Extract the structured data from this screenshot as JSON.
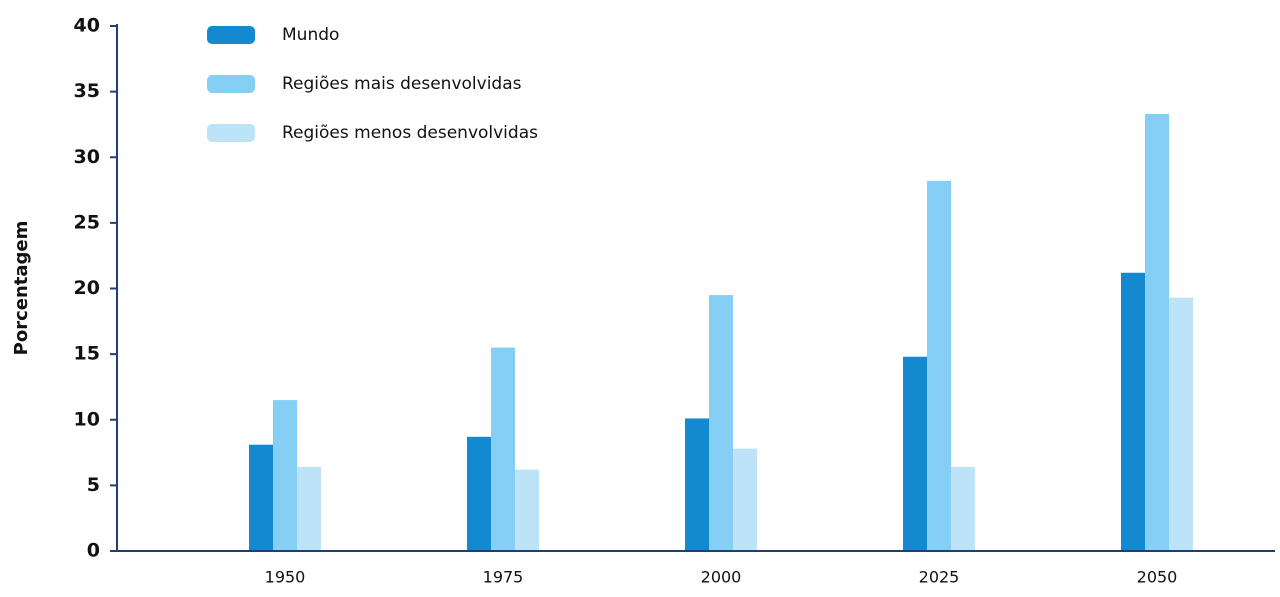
{
  "chart_data": {
    "type": "bar",
    "y_label": "Porcentagem",
    "categories": [
      "1950",
      "1975",
      "2000",
      "2025",
      "2050"
    ],
    "series": [
      {
        "name": "Mundo",
        "color": "#1589d0",
        "values": [
          8.1,
          8.7,
          10.1,
          14.8,
          21.2
        ]
      },
      {
        "name": "Regiões mais desenvolvidas",
        "color": "#84cff3",
        "values": [
          11.5,
          15.5,
          19.5,
          28.2,
          33.3
        ]
      },
      {
        "name": "Regiões menos desenvolvidas",
        "color": "#bde3f8",
        "values": [
          6.4,
          6.2,
          7.8,
          6.4,
          19.3
        ]
      }
    ],
    "ylim": [
      0,
      40
    ],
    "yticks": [
      0,
      5,
      10,
      15,
      20,
      25,
      30,
      35,
      40
    ],
    "legend": "top-left"
  }
}
